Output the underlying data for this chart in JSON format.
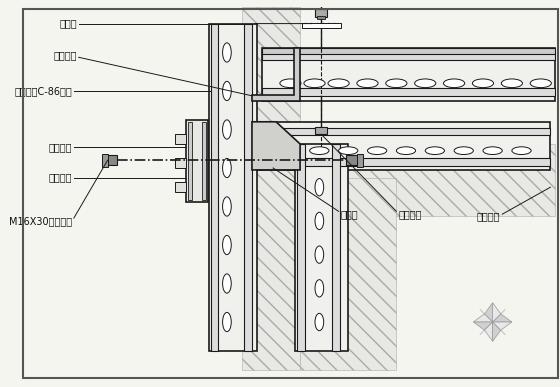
{
  "bg_color": "#f5f5f0",
  "line_color": "#1a1a1a",
  "hatch_color": "#888888",
  "title": "",
  "labels": {
    "tiaofeijian": "调节缝",
    "lianjiejiaogan": "连接角钢",
    "quangangdingxing": "全钢定型C-86模板",
    "caogangbeijia": "槽钢背楞",
    "mobanxinguan": "模板芯管",
    "m16bolts": "M16X30连接螺栓",
    "yinjiaomo": "阴角模",
    "chuanqiangluoshuan": "穿墙螺栓",
    "jiaomoxindai": "角模芯带"
  },
  "figsize": [
    5.6,
    3.87
  ],
  "dpi": 100
}
